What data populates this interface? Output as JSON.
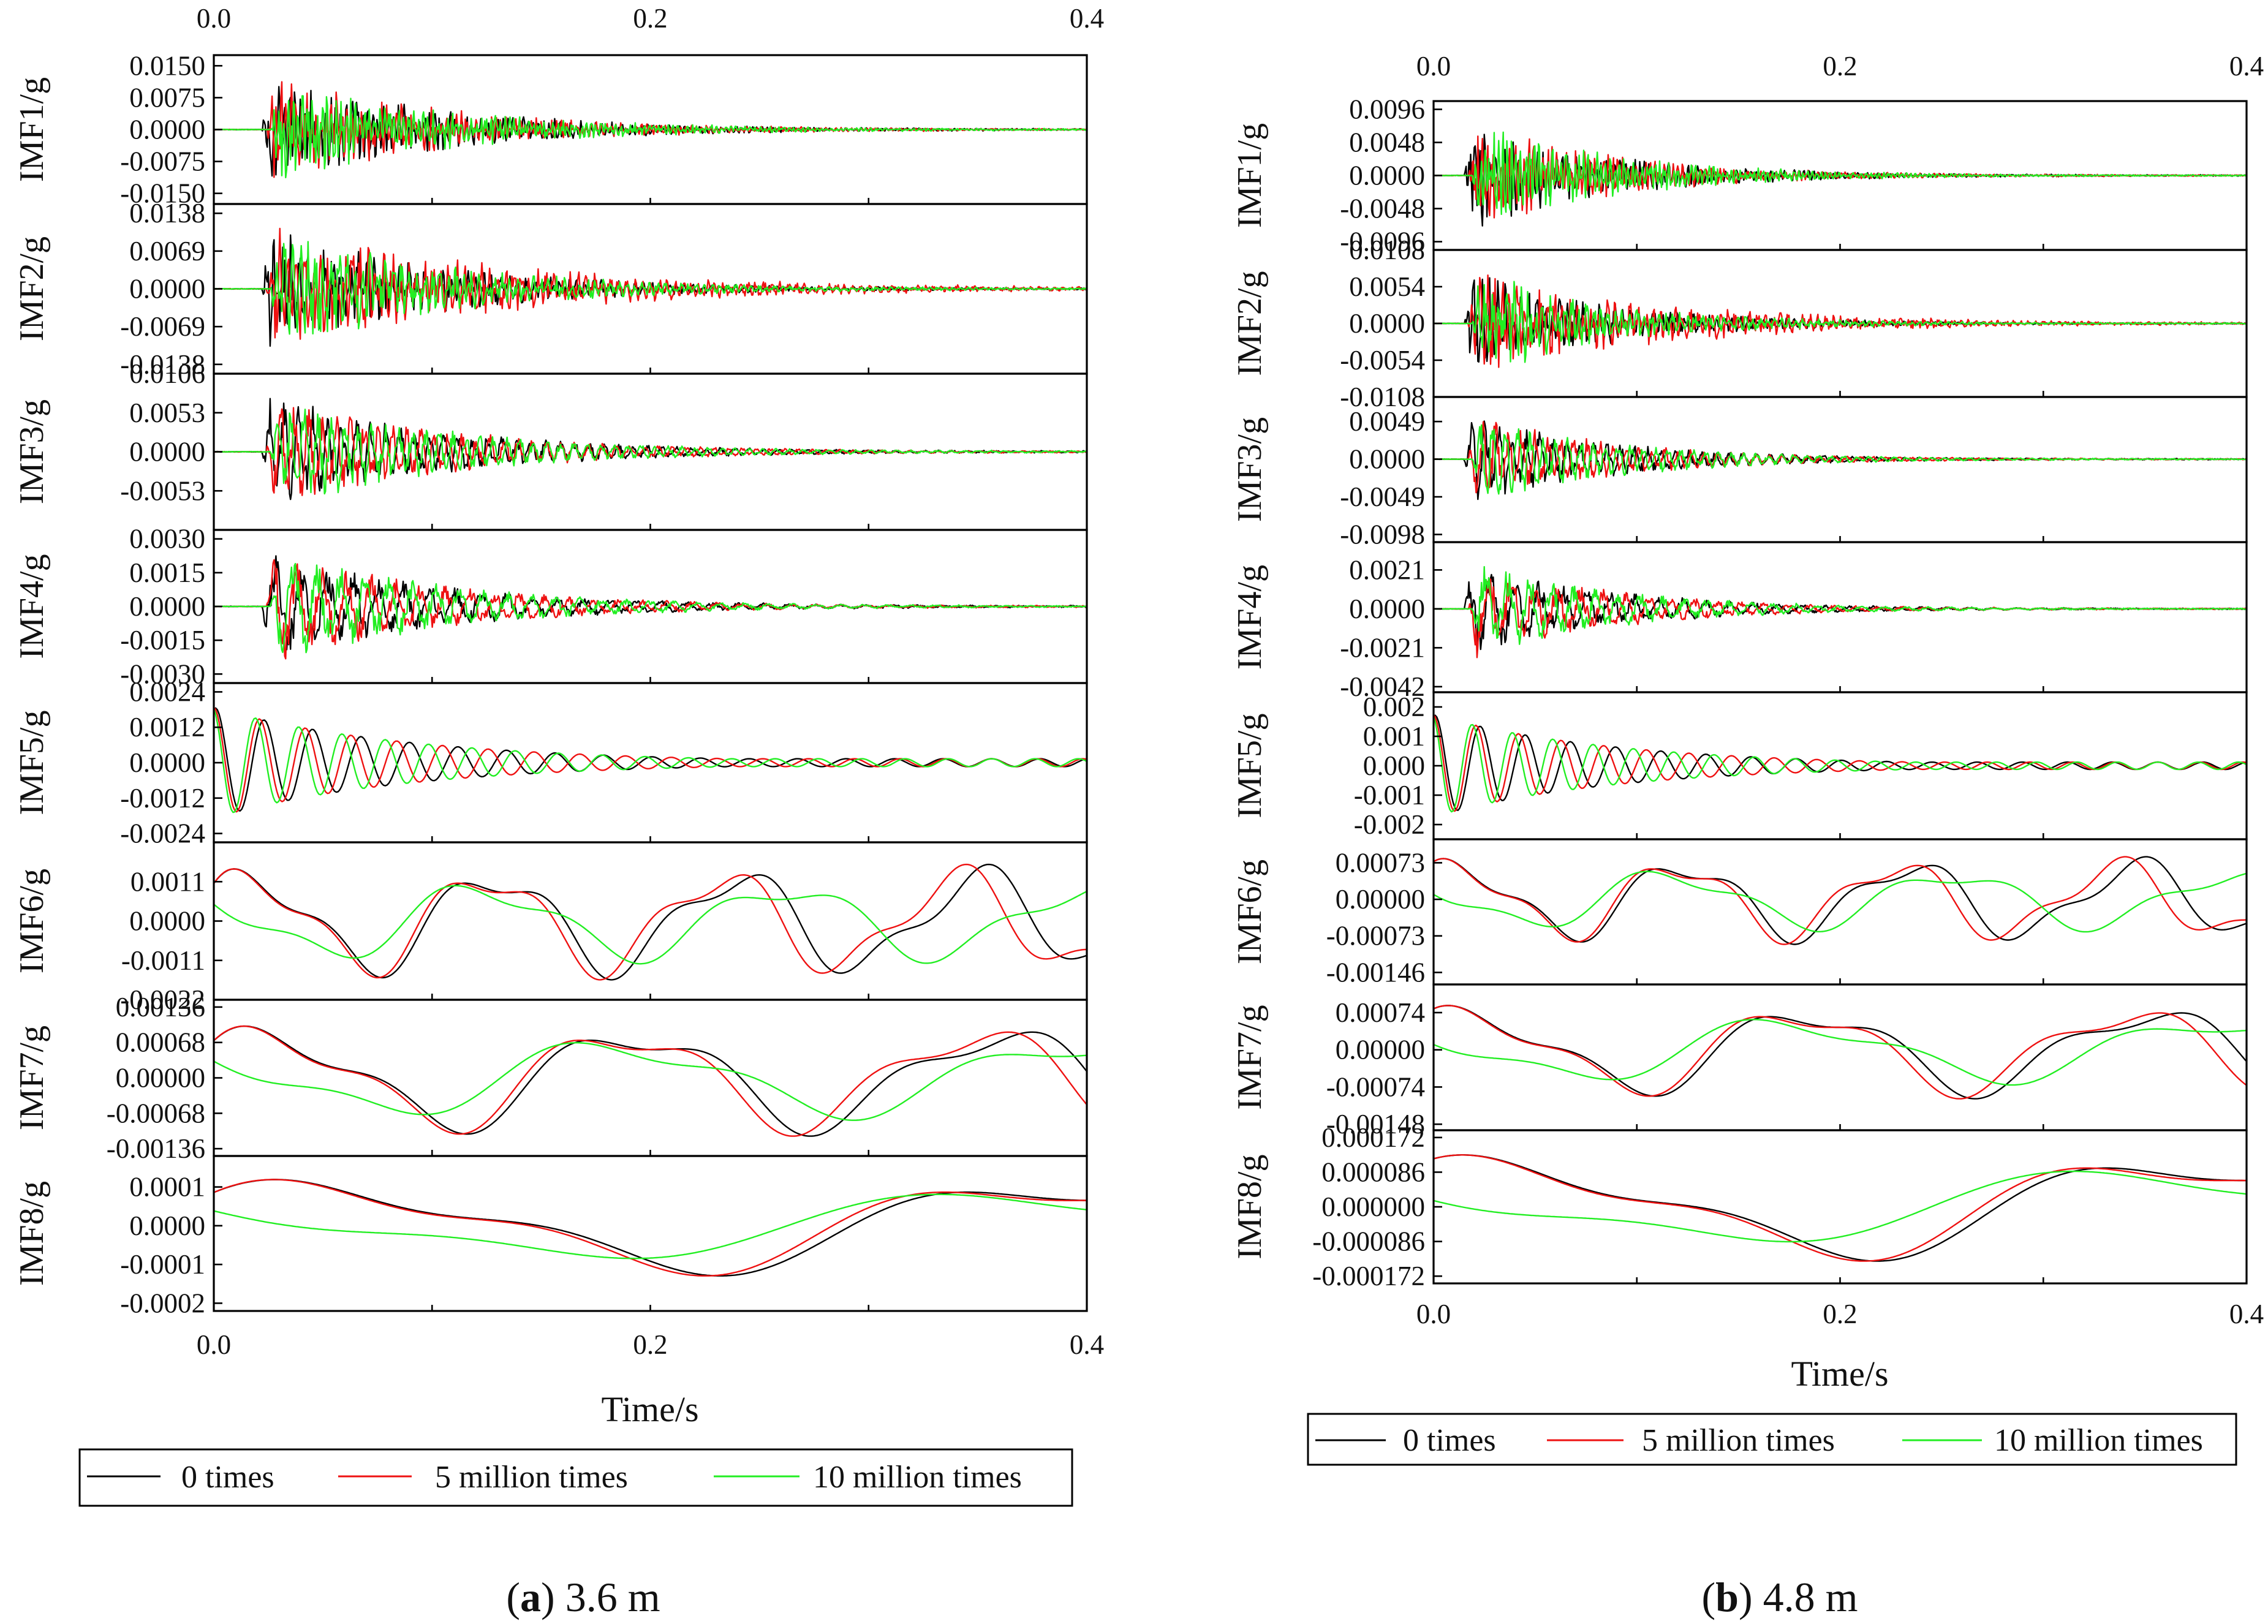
{
  "legend": {
    "items": [
      {
        "label": "0 times",
        "color": "#000000"
      },
      {
        "label": "5 million times",
        "color": "#ee1111"
      },
      {
        "label": "10 million times",
        "color": "#22ee22"
      }
    ]
  },
  "chart_data": [
    {
      "type": "line",
      "panel_id": "a",
      "caption_letter": "a",
      "caption_text": "3.6 m",
      "xlabel": "Time/s",
      "xlim": [
        0.0,
        0.4
      ],
      "x_ticks": [
        "0.0",
        "0.2",
        "0.4"
      ],
      "series_names": [
        "0 times",
        "5 million times",
        "10 million times"
      ],
      "subplots": [
        {
          "ylabel": "IMF1/g",
          "ylim": [
            -0.0175,
            0.0175
          ],
          "y_ticks": [
            0.015,
            0.0075,
            0.0,
            -0.0075,
            -0.015
          ],
          "y_tick_labels": [
            "0.0150",
            "0.0075",
            "0.0000",
            "-0.0075",
            "-0.0150"
          ]
        },
        {
          "ylabel": "IMF2/g",
          "ylim": [
            -0.0155,
            0.0155
          ],
          "y_ticks": [
            0.0138,
            0.0069,
            0.0,
            -0.0069,
            -0.0138
          ],
          "y_tick_labels": [
            "0.0138",
            "0.0069",
            "0.0000",
            "-0.0069",
            "-0.0138"
          ]
        },
        {
          "ylabel": "IMF3/g",
          "ylim": [
            -0.0106,
            0.0106
          ],
          "y_ticks": [
            0.0106,
            0.0053,
            0.0,
            -0.0053
          ],
          "y_tick_labels": [
            "0.0106",
            "0.0053",
            "0.0000",
            "-0.0053"
          ]
        },
        {
          "ylabel": "IMF4/g",
          "ylim": [
            -0.0034,
            0.0034
          ],
          "y_ticks": [
            0.003,
            0.0015,
            0.0,
            -0.0015,
            -0.003
          ],
          "y_tick_labels": [
            "0.0030",
            "0.0015",
            "0.0000",
            "-0.0015",
            "-0.0030"
          ]
        },
        {
          "ylabel": "IMF5/g",
          "ylim": [
            -0.0027,
            0.0027
          ],
          "y_ticks": [
            0.0024,
            0.0012,
            0.0,
            -0.0012,
            -0.0024
          ],
          "y_tick_labels": [
            "0.0024",
            "0.0012",
            "0.0000",
            "-0.0012",
            "-0.0024"
          ]
        },
        {
          "ylabel": "IMF6/g",
          "ylim": [
            -0.0022,
            0.0022
          ],
          "y_ticks": [
            0.0011,
            0.0,
            -0.0011,
            -0.0022
          ],
          "y_tick_labels": [
            "0.0011",
            "0.0000",
            "-0.0011",
            "-0.0022"
          ]
        },
        {
          "ylabel": "IMF7/g",
          "ylim": [
            -0.0015,
            0.0015
          ],
          "y_ticks": [
            0.00136,
            0.00068,
            0.0,
            -0.00068,
            -0.00136
          ],
          "y_tick_labels": [
            "0.00136",
            "0.00068",
            "0.00000",
            "-0.00068",
            "-0.00136"
          ]
        },
        {
          "ylabel": "IMF8/g",
          "ylim": [
            -0.00022,
            0.00018
          ],
          "y_ticks": [
            0.0001,
            0.0,
            -0.0001,
            -0.0002
          ],
          "y_tick_labels": [
            "0.0001",
            "0.0000",
            "-0.0001",
            "-0.0002"
          ]
        }
      ]
    },
    {
      "type": "line",
      "panel_id": "b",
      "caption_letter": "b",
      "caption_text": "4.8 m",
      "xlabel": "Time/s",
      "xlim": [
        0.0,
        0.4
      ],
      "x_ticks": [
        "0.0",
        "0.2",
        "0.4"
      ],
      "series_names": [
        "0 times",
        "5 million times",
        "10 million times"
      ],
      "subplots": [
        {
          "ylabel": "IMF1/g",
          "ylim": [
            -0.0108,
            0.0108
          ],
          "y_ticks": [
            0.0096,
            0.0048,
            0.0,
            -0.0048,
            -0.0096
          ],
          "y_tick_labels": [
            "0.0096",
            "0.0048",
            "0.0000",
            "-0.0048",
            "-0.0096"
          ]
        },
        {
          "ylabel": "IMF2/g",
          "ylim": [
            -0.0108,
            0.0108
          ],
          "y_ticks": [
            0.0108,
            0.0054,
            0.0,
            -0.0054,
            -0.0108
          ],
          "y_tick_labels": [
            "0.0108",
            "0.0054",
            "0.0000",
            "-0.0054",
            "-0.0108"
          ]
        },
        {
          "ylabel": "IMF3/g",
          "ylim": [
            -0.0108,
            0.0081
          ],
          "y_ticks": [
            0.0049,
            0.0,
            -0.0049,
            -0.0098
          ],
          "y_tick_labels": [
            "0.0049",
            "0.0000",
            "-0.0049",
            "-0.0098"
          ]
        },
        {
          "ylabel": "IMF4/g",
          "ylim": [
            -0.0045,
            0.0036
          ],
          "y_ticks": [
            0.0021,
            0.0,
            -0.0021,
            -0.0042
          ],
          "y_tick_labels": [
            "0.0021",
            "0.0000",
            "-0.0021",
            "-0.0042"
          ]
        },
        {
          "ylabel": "IMF5/g",
          "ylim": [
            -0.0025,
            0.0025
          ],
          "y_ticks": [
            0.002,
            0.001,
            0.0,
            -0.001,
            -0.002
          ],
          "y_tick_labels": [
            "0.002",
            "0.001",
            "0.000",
            "-0.001",
            "-0.002"
          ]
        },
        {
          "ylabel": "IMF6/g",
          "ylim": [
            -0.0017,
            0.0012
          ],
          "y_ticks": [
            0.00073,
            0.0,
            -0.00073,
            -0.00146
          ],
          "y_tick_labels": [
            "0.00073",
            "0.00000",
            "-0.00073",
            "-0.00146"
          ]
        },
        {
          "ylabel": "IMF7/g",
          "ylim": [
            -0.0016,
            0.0013
          ],
          "y_ticks": [
            0.00074,
            0.0,
            -0.00074,
            -0.00148
          ],
          "y_tick_labels": [
            "0.00074",
            "0.00000",
            "-0.00074",
            "-0.00148"
          ]
        },
        {
          "ylabel": "IMF8/g",
          "ylim": [
            -0.00019,
            0.00019
          ],
          "y_ticks": [
            0.000172,
            8.6e-05,
            0.0,
            -8.6e-05,
            -0.000172
          ],
          "y_tick_labels": [
            "0.000172",
            "0.000086",
            "0.000000",
            "-0.000086",
            "-0.000172"
          ]
        }
      ]
    }
  ]
}
